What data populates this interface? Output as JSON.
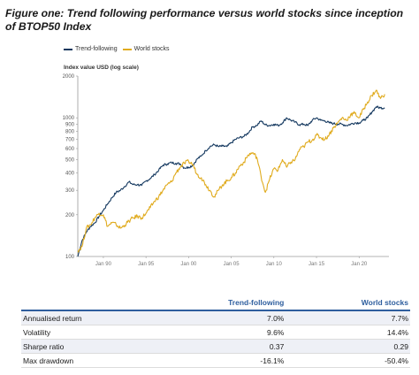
{
  "figure": {
    "title": "Figure one: Trend following performance versus world stocks since inception of BTOP50 Index"
  },
  "colors": {
    "trend": "#14385f",
    "world": "#e0ab1e",
    "header": "#2e5e9e",
    "axis": "#9a9a9a"
  },
  "chart_data": {
    "type": "line",
    "title": "",
    "ylabel": "Index value USD (log scale)",
    "xlabel": "",
    "y_scale": "log",
    "ylim": [
      100,
      2000
    ],
    "xlim": [
      1987,
      2023.5
    ],
    "y_ticks": [
      {
        "value": 100,
        "label": "100"
      },
      {
        "value": 200,
        "label": "200"
      },
      {
        "value": 300,
        "label": "300"
      },
      {
        "value": 400,
        "label": "400"
      },
      {
        "value": 500,
        "label": "500"
      },
      {
        "value": 600,
        "label": "600"
      },
      {
        "value": 700,
        "label": "700"
      },
      {
        "value": 800,
        "label": "800"
      },
      {
        "value": 900,
        "label": "900"
      },
      {
        "value": 1000,
        "label": "1000"
      },
      {
        "value": 2000,
        "label": "2000"
      }
    ],
    "x_ticks": [
      {
        "value": 1990,
        "label": "Jan 90"
      },
      {
        "value": 1995,
        "label": "Jan 95"
      },
      {
        "value": 2000,
        "label": "Jan 00"
      },
      {
        "value": 2005,
        "label": "Jan 05"
      },
      {
        "value": 2010,
        "label": "Jan 10"
      },
      {
        "value": 2015,
        "label": "Jan 15"
      },
      {
        "value": 2020,
        "label": "Jan 20"
      }
    ],
    "legend_position": "top-left",
    "grid": false,
    "series": [
      {
        "name": "Trend-following",
        "color": "#14385f",
        "x": [
          1987.0,
          1987.5,
          1988.0,
          1988.5,
          1989.0,
          1989.5,
          1990.0,
          1990.5,
          1991.0,
          1991.5,
          1992.0,
          1992.5,
          1993.0,
          1993.5,
          1994.0,
          1994.5,
          1995.0,
          1995.5,
          1996.0,
          1996.5,
          1997.0,
          1997.5,
          1998.0,
          1998.5,
          1999.0,
          1999.5,
          2000.0,
          2000.5,
          2001.0,
          2001.5,
          2002.0,
          2002.5,
          2003.0,
          2003.5,
          2004.0,
          2004.5,
          2005.0,
          2005.5,
          2006.0,
          2006.5,
          2007.0,
          2007.5,
          2008.0,
          2008.5,
          2009.0,
          2009.5,
          2010.0,
          2010.5,
          2011.0,
          2011.5,
          2012.0,
          2012.5,
          2013.0,
          2013.5,
          2014.0,
          2014.5,
          2015.0,
          2015.5,
          2016.0,
          2016.5,
          2017.0,
          2017.5,
          2018.0,
          2018.5,
          2019.0,
          2019.5,
          2020.0,
          2020.5,
          2021.0,
          2021.5,
          2022.0,
          2022.5,
          2023.0
        ],
        "values": [
          100,
          130,
          150,
          165,
          175,
          195,
          215,
          240,
          265,
          290,
          300,
          320,
          345,
          330,
          330,
          325,
          350,
          365,
          390,
          420,
          455,
          465,
          475,
          470,
          465,
          435,
          440,
          455,
          505,
          530,
          580,
          620,
          640,
          620,
          625,
          620,
          660,
          700,
          720,
          735,
          780,
          860,
          880,
          950,
          890,
          880,
          900,
          880,
          920,
          1000,
          960,
          930,
          890,
          900,
          880,
          960,
          1000,
          960,
          950,
          920,
          910,
          900,
          900,
          880,
          900,
          920,
          920,
          960,
          1000,
          1100,
          1200,
          1180,
          1180
        ]
      },
      {
        "name": "World stocks",
        "color": "#e0ab1e",
        "x": [
          1987.0,
          1987.5,
          1988.0,
          1988.5,
          1989.0,
          1989.5,
          1990.0,
          1990.5,
          1991.0,
          1991.5,
          1992.0,
          1992.5,
          1993.0,
          1993.5,
          1994.0,
          1994.5,
          1995.0,
          1995.5,
          1996.0,
          1996.5,
          1997.0,
          1997.5,
          1998.0,
          1998.5,
          1999.0,
          1999.5,
          2000.0,
          2000.5,
          2001.0,
          2001.5,
          2002.0,
          2002.5,
          2003.0,
          2003.5,
          2004.0,
          2004.5,
          2005.0,
          2005.5,
          2006.0,
          2006.5,
          2007.0,
          2007.5,
          2008.0,
          2008.5,
          2009.0,
          2009.5,
          2010.0,
          2010.5,
          2011.0,
          2011.5,
          2012.0,
          2012.5,
          2013.0,
          2013.5,
          2014.0,
          2014.5,
          2015.0,
          2015.5,
          2016.0,
          2016.5,
          2017.0,
          2017.5,
          2018.0,
          2018.5,
          2019.0,
          2019.5,
          2020.0,
          2020.5,
          2021.0,
          2021.5,
          2022.0,
          2022.5,
          2023.0
        ],
        "values": [
          110,
          118,
          160,
          170,
          190,
          205,
          200,
          165,
          175,
          170,
          160,
          168,
          180,
          190,
          195,
          190,
          205,
          225,
          250,
          270,
          300,
          330,
          345,
          400,
          440,
          470,
          485,
          460,
          390,
          370,
          330,
          300,
          270,
          300,
          330,
          350,
          370,
          400,
          450,
          480,
          540,
          560,
          520,
          380,
          290,
          360,
          430,
          420,
          500,
          440,
          480,
          500,
          590,
          620,
          670,
          690,
          750,
          720,
          700,
          760,
          850,
          920,
          1000,
          960,
          1050,
          1080,
          1000,
          1150,
          1300,
          1450,
          1580,
          1380,
          1480
        ]
      }
    ]
  },
  "table": {
    "headers": {
      "col1": "Trend-following",
      "col2": "World stocks"
    },
    "rows": [
      {
        "label": "Annualised return",
        "trend": "7.0%",
        "world": "7.7%"
      },
      {
        "label": "Volatility",
        "trend": "9.6%",
        "world": "14.4%"
      },
      {
        "label": "Sharpe ratio",
        "trend": "0.37",
        "world": "0.29"
      },
      {
        "label": "Max drawdown",
        "trend": "-16.1%",
        "world": "-50.4%"
      }
    ]
  }
}
